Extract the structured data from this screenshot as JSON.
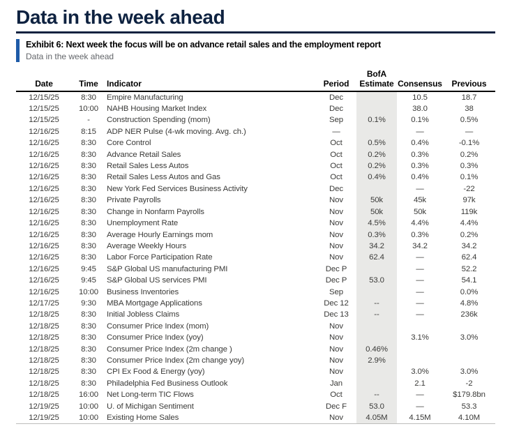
{
  "page": {
    "title": "Data in the week ahead"
  },
  "exhibit": {
    "heading": "Exhibit 6: Next week the focus will be on advance retail sales and the employment report",
    "subtitle": "Data in the week ahead"
  },
  "colors": {
    "title_navy": "#0e2240",
    "exhibit_bar_blue": "#1e5ba8",
    "estimate_column_bg": "#e9e9e7",
    "subtitle_gray": "#63666a",
    "table_text": "#3a3a38"
  },
  "table": {
    "columns": [
      {
        "key": "date",
        "label": "Date"
      },
      {
        "key": "time",
        "label": "Time"
      },
      {
        "key": "indicator",
        "label": "Indicator"
      },
      {
        "key": "period",
        "label": "Period"
      },
      {
        "key": "bofa",
        "label": "BofA Estimate",
        "label_line1": "BofA",
        "label_line2": "Estimate"
      },
      {
        "key": "consensus",
        "label": "Consensus"
      },
      {
        "key": "previous",
        "label": "Previous"
      }
    ],
    "rows": [
      [
        "12/15/25",
        "8:30",
        "Empire Manufacturing",
        "Dec",
        "",
        "10.5",
        "18.7"
      ],
      [
        "12/15/25",
        "10:00",
        "NAHB Housing Market Index",
        "Dec",
        "",
        "38.0",
        "38"
      ],
      [
        "12/15/25",
        "-",
        "Construction Spending (mom)",
        "Sep",
        "0.1%",
        "0.1%",
        "0.5%"
      ],
      [
        "12/16/25",
        "8:15",
        "ADP NER Pulse (4-wk moving. Avg. ch.)",
        "—",
        "",
        "—",
        "—"
      ],
      [
        "12/16/25",
        "8:30",
        "Core Control",
        "Oct",
        "0.5%",
        "0.4%",
        "-0.1%"
      ],
      [
        "12/16/25",
        "8:30",
        "Advance Retail Sales",
        "Oct",
        "0.2%",
        "0.3%",
        "0.2%"
      ],
      [
        "12/16/25",
        "8:30",
        "Retail Sales Less Autos",
        "Oct",
        "0.2%",
        "0.3%",
        "0.3%"
      ],
      [
        "12/16/25",
        "8:30",
        "Retail Sales Less Autos and Gas",
        "Oct",
        "0.4%",
        "0.4%",
        "0.1%"
      ],
      [
        "12/16/25",
        "8:30",
        "New York Fed Services Business Activity",
        "Dec",
        "",
        "—",
        "-22"
      ],
      [
        "12/16/25",
        "8:30",
        "Private Payrolls",
        "Nov",
        "50k",
        "45k",
        "97k"
      ],
      [
        "12/16/25",
        "8:30",
        "Change in Nonfarm Payrolls",
        "Nov",
        "50k",
        "50k",
        "119k"
      ],
      [
        "12/16/25",
        "8:30",
        "Unemployment Rate",
        "Nov",
        "4.5%",
        "4.4%",
        "4.4%"
      ],
      [
        "12/16/25",
        "8:30",
        "Average Hourly Earnings mom",
        "Nov",
        "0.3%",
        "0.3%",
        "0.2%"
      ],
      [
        "12/16/25",
        "8:30",
        "Average Weekly Hours",
        "Nov",
        "34.2",
        "34.2",
        "34.2"
      ],
      [
        "12/16/25",
        "8:30",
        "Labor Force Participation Rate",
        "Nov",
        "62.4",
        "—",
        "62.4"
      ],
      [
        "12/16/25",
        "9:45",
        "S&P Global US manufacturing PMI",
        "Dec P",
        "",
        "—",
        "52.2"
      ],
      [
        "12/16/25",
        "9:45",
        "S&P Global US services PMI",
        "Dec P",
        "53.0",
        "—",
        "54.1"
      ],
      [
        "12/16/25",
        "10:00",
        "Business Inventories",
        "Sep",
        "",
        "—",
        "0.0%"
      ],
      [
        "12/17/25",
        "9:30",
        "MBA Mortgage Applications",
        "Dec 12",
        "--",
        "—",
        "4.8%"
      ],
      [
        "12/18/25",
        "8:30",
        "Initial Jobless Claims",
        "Dec 13",
        "--",
        "—",
        "236k"
      ],
      [
        "12/18/25",
        "8:30",
        "Consumer Price Index (mom)",
        "Nov",
        "",
        "",
        ""
      ],
      [
        "12/18/25",
        "8:30",
        "Consumer Price Index (yoy)",
        "Nov",
        "",
        "3.1%",
        "3.0%"
      ],
      [
        "12/18/25",
        "8:30",
        "Consumer Price Index (2m change )",
        "Nov",
        "0.46%",
        "",
        ""
      ],
      [
        "12/18/25",
        "8:30",
        "Consumer Price Index (2m change yoy)",
        "Nov",
        "2.9%",
        "",
        ""
      ],
      [
        "12/18/25",
        "8:30",
        "CPI Ex Food & Energy (yoy)",
        "Nov",
        "",
        "3.0%",
        "3.0%"
      ],
      [
        "12/18/25",
        "8:30",
        "Philadelphia Fed Business Outlook",
        "Jan",
        "",
        "2.1",
        "-2"
      ],
      [
        "12/18/25",
        "16:00",
        "Net Long-term TIC Flows",
        "Oct",
        "--",
        "—",
        "$179.8bn"
      ],
      [
        "12/19/25",
        "10:00",
        "U. of Michigan Sentiment",
        "Dec F",
        "53.0",
        "—",
        "53.3"
      ],
      [
        "12/19/25",
        "10:00",
        "Existing Home Sales",
        "Nov",
        "4.05M",
        "4.15M",
        "4.10M"
      ]
    ]
  }
}
